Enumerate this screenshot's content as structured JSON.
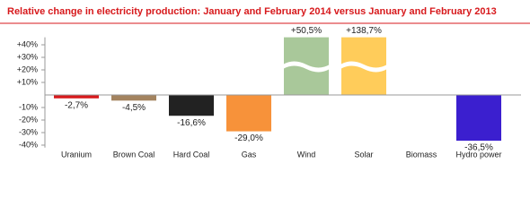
{
  "chart_data": {
    "type": "bar",
    "title": "Relative change in electricity production: January and February 2014 versus January and February 2013",
    "categories": [
      "Uranium",
      "Brown Coal",
      "Hard Coal",
      "Gas",
      "Wind",
      "Solar",
      "Biomass",
      "Hydro power"
    ],
    "values": [
      -2.7,
      -4.5,
      -16.6,
      -29.0,
      50.5,
      138.7,
      null,
      -36.5
    ],
    "value_labels": [
      "-2,7%",
      "-4,5%",
      "-16,6%",
      "-29,0%",
      "+50,5%",
      "+138,7%",
      null,
      "-36,5%"
    ],
    "colors": [
      "#d7191c",
      "#a3835f",
      "#222222",
      "#f7923a",
      "#a9c89a",
      "#ffcc5a",
      "#888888",
      "#3b1fcf"
    ],
    "ylim": [
      -42,
      46
    ],
    "yticks": [
      {
        "value": 40,
        "label": "+40%"
      },
      {
        "value": 30,
        "label": "+30%"
      },
      {
        "value": 20,
        "label": "+20%"
      },
      {
        "value": 10,
        "label": "+10%"
      },
      {
        "value": -10,
        "label": "-10%"
      },
      {
        "value": -20,
        "label": "-20%"
      },
      {
        "value": -30,
        "label": "-30%"
      },
      {
        "value": -40,
        "label": "-40%"
      }
    ]
  }
}
